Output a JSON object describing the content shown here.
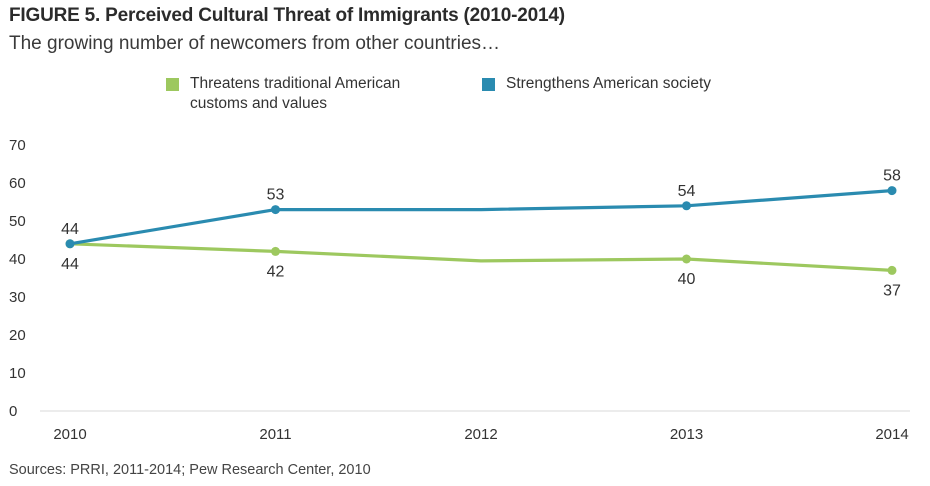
{
  "header": {
    "title": "FIGURE 5.  Perceived Cultural Threat of Immigrants (2010-2014)",
    "subtitle": "The growing number of newcomers from other countries…"
  },
  "source": "Sources: PRRI, 2011-2014; Pew Research Center, 2010",
  "chart_data": {
    "type": "line",
    "title": "FIGURE 5.  Perceived Cultural Threat of Immigrants (2010-2014)",
    "subtitle": "The growing number of newcomers from other countries…",
    "xlabel": "",
    "ylabel": "",
    "x": [
      "2010",
      "2011",
      "2012",
      "2013",
      "2014"
    ],
    "ylim": [
      0,
      70
    ],
    "yticks": [
      0,
      10,
      20,
      30,
      40,
      50,
      60,
      70
    ],
    "grid": false,
    "legend_position": "top",
    "series": [
      {
        "name": "Threatens traditional American customs and values",
        "color": "#9dc85f",
        "values": [
          44,
          42,
          39.5,
          40,
          37
        ],
        "markers": [
          true,
          true,
          false,
          true,
          true
        ],
        "labels": [
          "44",
          "42",
          "",
          "40",
          "37"
        ],
        "label_position": "below"
      },
      {
        "name": "Strengthens American society",
        "color": "#2a8bb0",
        "values": [
          44,
          53,
          53,
          54,
          58
        ],
        "markers": [
          true,
          true,
          false,
          true,
          true
        ],
        "labels": [
          "44",
          "53",
          "",
          "54",
          "58"
        ],
        "label_position": "above"
      }
    ]
  }
}
